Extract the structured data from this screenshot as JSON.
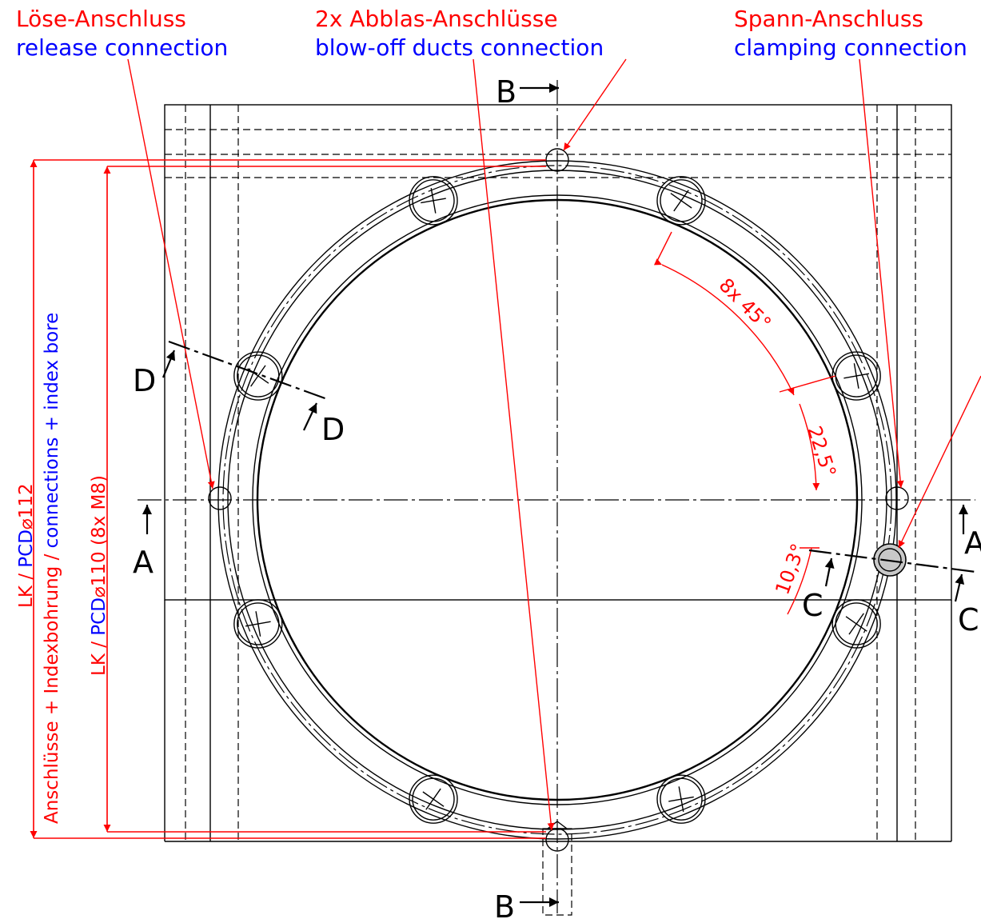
{
  "labels": {
    "release": {
      "de": "Löse-Anschluss",
      "en": "release connection"
    },
    "blowoff": {
      "de": "2x Abblas-Anschlüsse",
      "en": "blow-off ducts connection"
    },
    "clamping": {
      "de": "Spann-Anschluss",
      "en": "clamping connection"
    }
  },
  "sections": {
    "b_top": "B",
    "b_bottom": "B",
    "a_left": "A",
    "a_right": "A",
    "d_left": "D",
    "d_right": "D",
    "c_left": "C",
    "c_right": "C"
  },
  "dimensions": {
    "angle_pattern": "8x 45°",
    "angle_offset": "22,5°",
    "angle_small": "10,3°",
    "pcd112": {
      "prefix": "LK / ",
      "pcd": "PCD",
      "diameter": "⌀112",
      "line2_red": "Anschlüsse + Indexbohrung / ",
      "line2_blue": "connections + index bore"
    },
    "pcd110": {
      "prefix": "LK / ",
      "pcd": "PCD",
      "diameter": "⌀110",
      "suffix": " (8x M8)"
    }
  },
  "colors": {
    "annotation_red": "#ff0000",
    "annotation_blue": "#0000ff",
    "geometry": "#000000"
  }
}
